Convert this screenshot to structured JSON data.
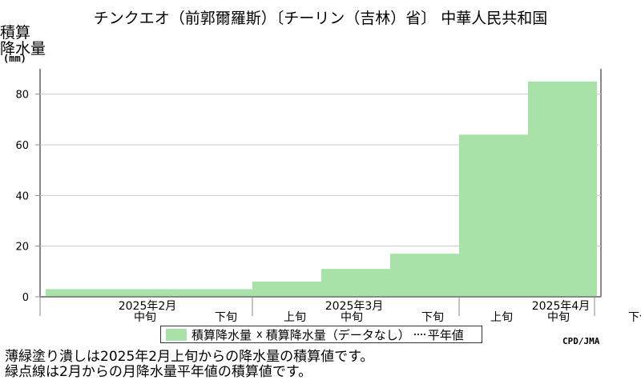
{
  "title": "チンクエオ（前郭爾羅斯）〔チーリン（吉林）省〕 中華人民共和国",
  "ylabel_line1": "積算",
  "ylabel_line2": "降水量",
  "ylabel_unit": "(mm)",
  "legend": {
    "bar_label": "積算降水量",
    "marker_label": "積算降水量（データなし）",
    "mean_label": "平年値"
  },
  "credit": "CPD/JMA",
  "notes": [
    "薄緑塗り潰しは2025年2月上旬からの降水量の積算値です。",
    "緑点線は2月からの月降水量平年値の積算値です。"
  ],
  "colors": {
    "bar": "#a8e2a8",
    "grid": "#cccccc",
    "axis": "#888888"
  },
  "chart_data": {
    "type": "bar",
    "ylim": [
      0,
      90
    ],
    "yticks": [
      0,
      20,
      40,
      60,
      80
    ],
    "grid": true,
    "categories": [
      "2月上旬",
      "2月中旬",
      "2月下旬",
      "3月上旬",
      "3月中旬",
      "3月下旬",
      "4月上旬",
      "4月中旬",
      "4月下旬"
    ],
    "dekad_labels": [
      "",
      "中旬",
      "下旬",
      "上旬",
      "中旬",
      "下旬",
      "上旬",
      "中旬",
      "下旬"
    ],
    "month_labels": [
      {
        "label": "2025年2月",
        "index": 1
      },
      {
        "label": "2025年3月",
        "index": 4
      },
      {
        "label": "2025年4月",
        "index": 7
      }
    ],
    "series": [
      {
        "name": "積算降水量",
        "values": [
          3,
          3,
          3,
          6,
          11,
          17,
          64,
          85,
          null
        ]
      }
    ]
  }
}
